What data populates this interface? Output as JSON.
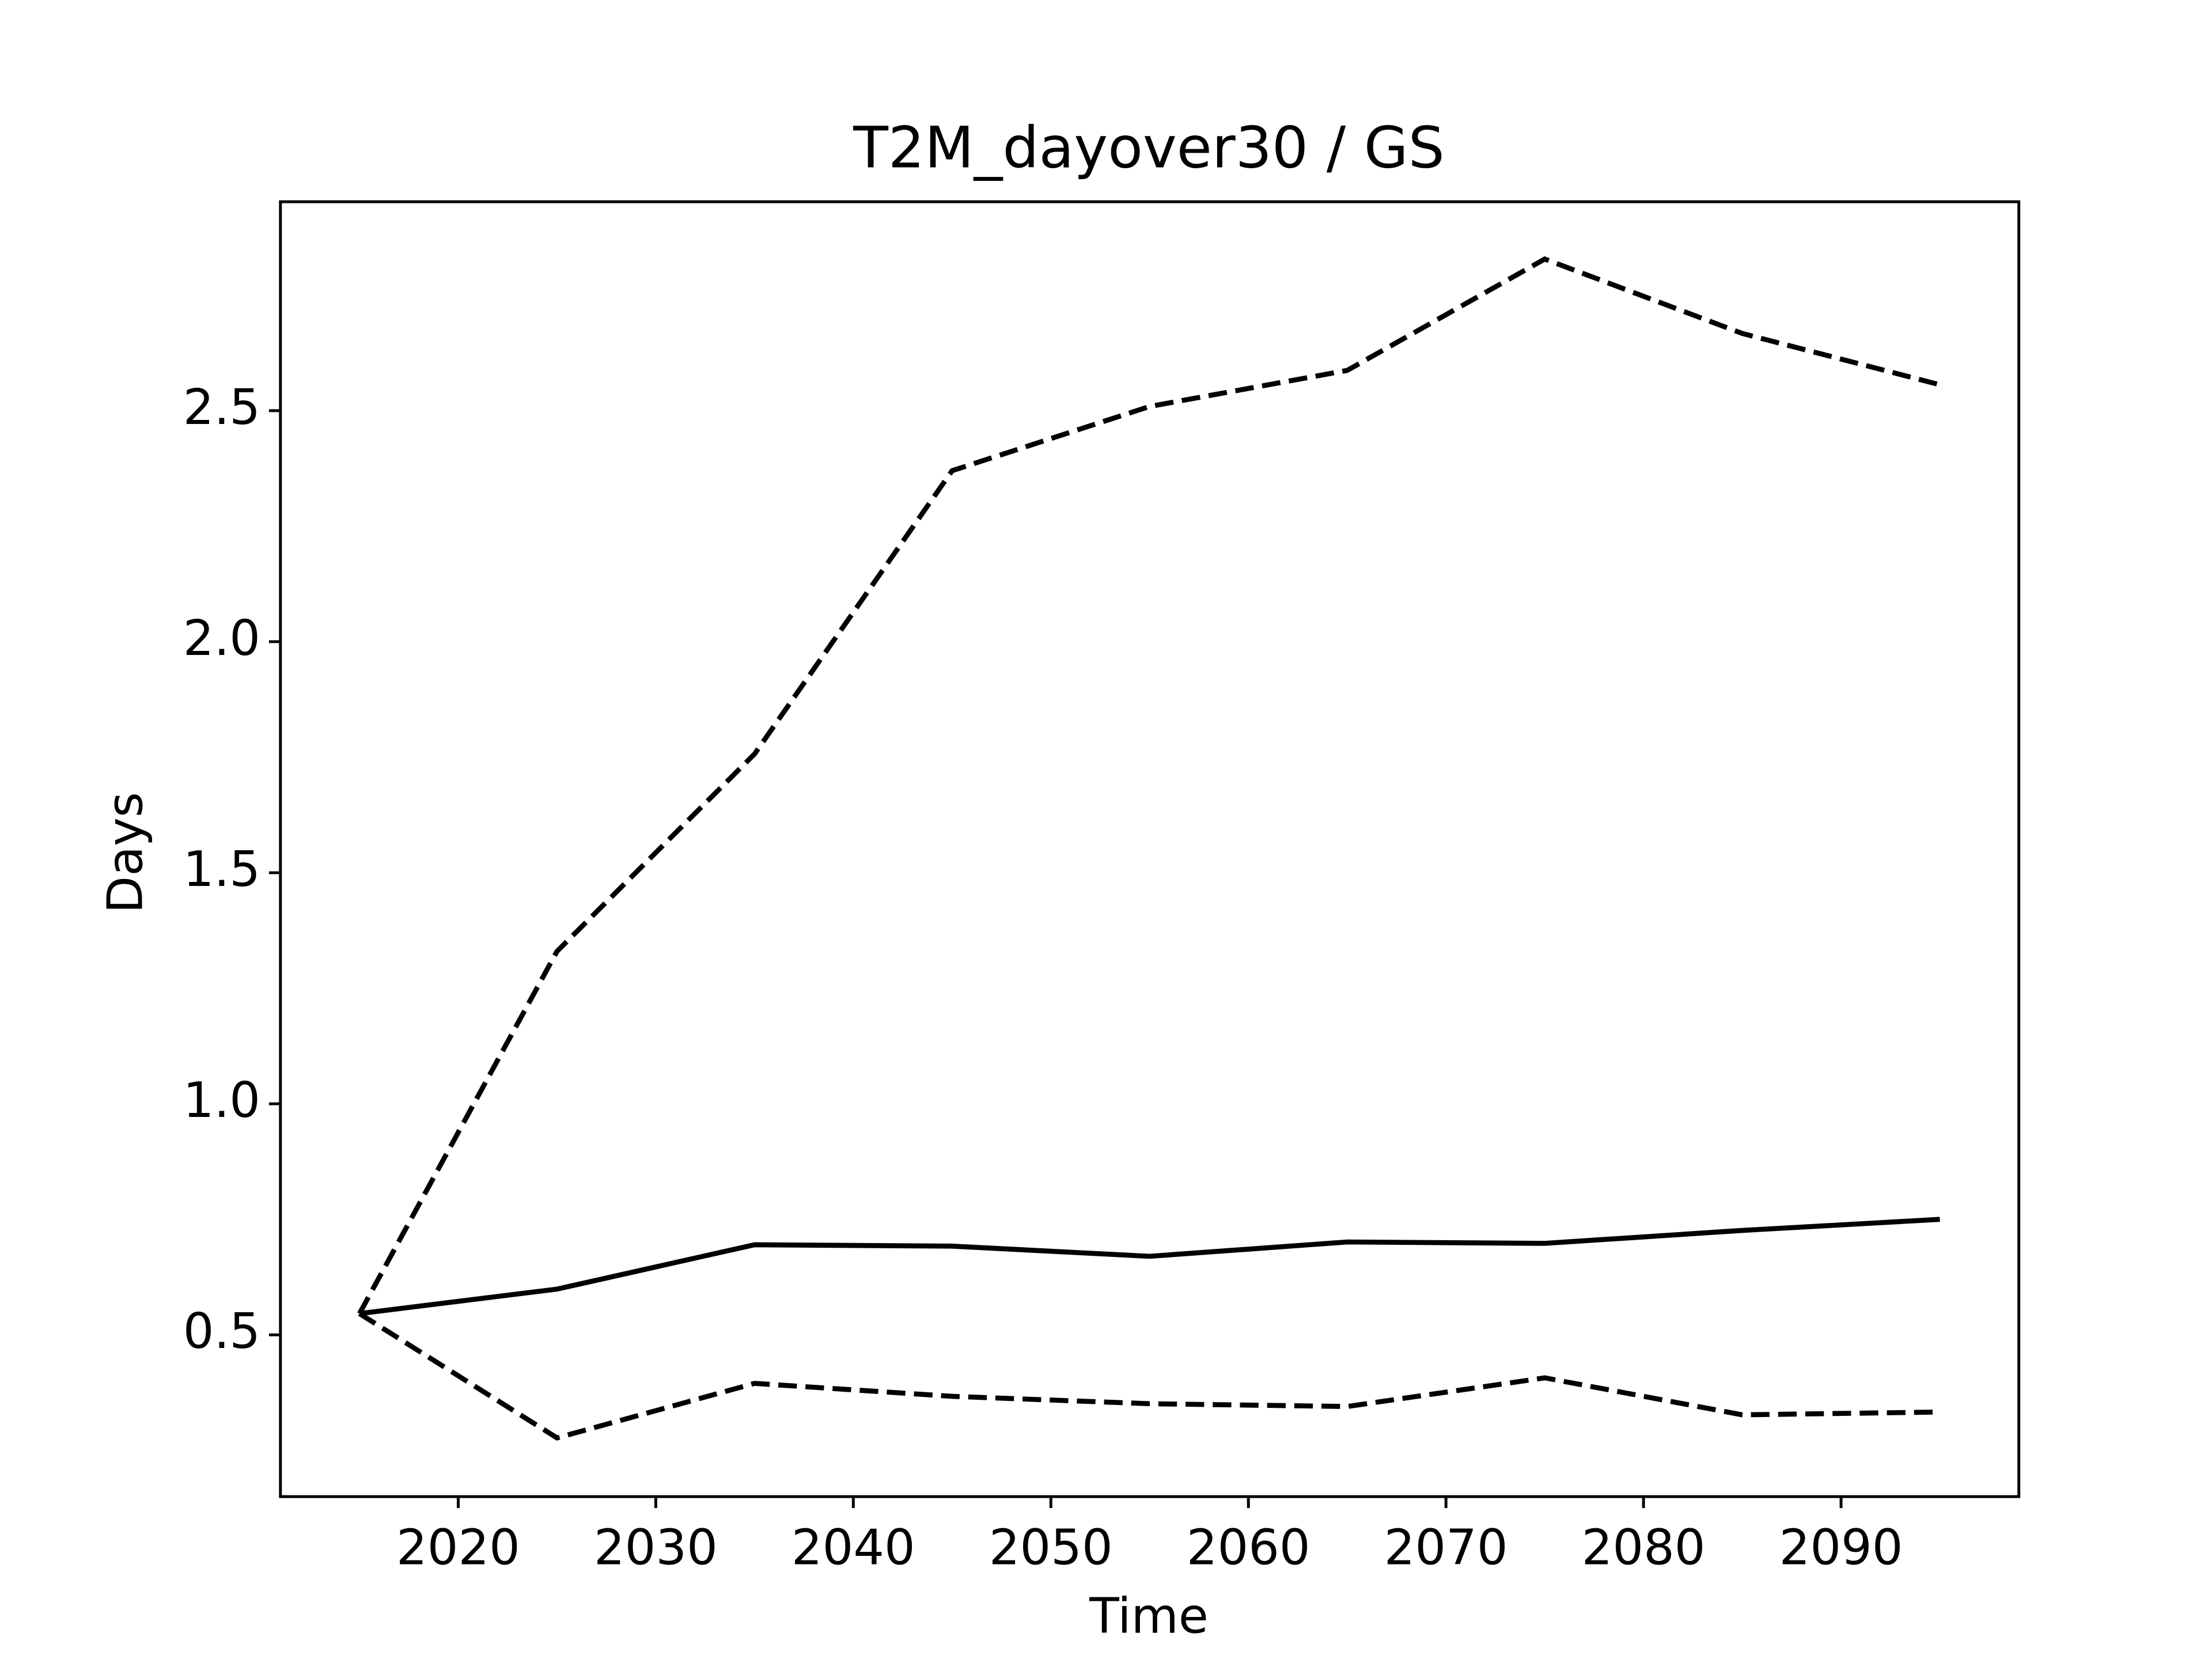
{
  "chart_data": {
    "type": "line",
    "title": "T2M_dayover30 / GS",
    "xlabel": "Time",
    "ylabel": "Days",
    "x": [
      2015,
      2025,
      2035,
      2045,
      2055,
      2065,
      2075,
      2085,
      2095
    ],
    "series": [
      {
        "color": "#000000",
        "linestyle": "solid",
        "values": [
          0.546,
          0.599,
          0.695,
          0.692,
          0.67,
          0.701,
          0.698,
          0.726,
          0.75
        ]
      },
      {
        "color": "#000000",
        "linestyle": "dashed",
        "values": [
          0.546,
          1.33,
          1.757,
          2.37,
          2.509,
          2.587,
          2.828,
          2.667,
          2.556
        ]
      },
      {
        "color": "#000000",
        "linestyle": "dashed",
        "values": [
          0.546,
          0.277,
          0.395,
          0.367,
          0.351,
          0.345,
          0.407,
          0.327,
          0.333
        ]
      }
    ],
    "xlim": [
      2011,
      2099
    ],
    "xticks": [
      2020,
      2030,
      2040,
      2050,
      2060,
      2070,
      2080,
      2090
    ],
    "ylim": [
      0.15,
      2.952
    ],
    "yticks": [
      {
        "value": 0.5,
        "label": "0.5"
      },
      {
        "value": 1,
        "label": "1.0"
      },
      {
        "value": 1.5,
        "label": "1.5"
      },
      {
        "value": 2,
        "label": "2.0"
      },
      {
        "value": 2.5,
        "label": "2.5"
      }
    ],
    "grid": false
  }
}
